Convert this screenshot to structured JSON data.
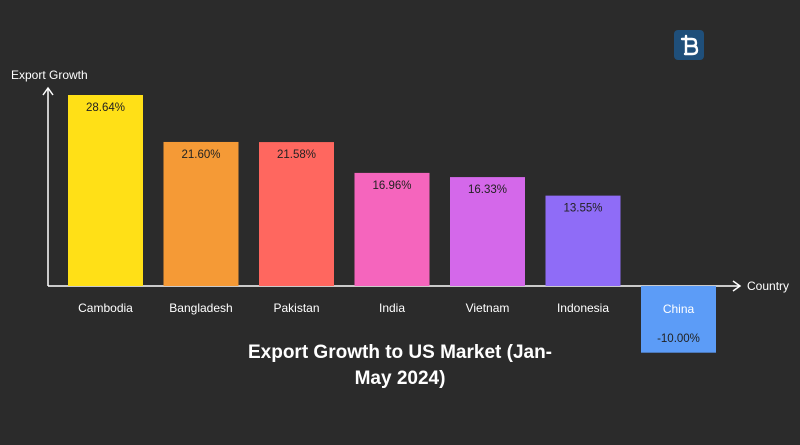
{
  "colors": {
    "background": "#2b2b2b",
    "axis": "#ffffff",
    "logo_bg": "#1f4f7a"
  },
  "logo": {
    "icon": "brand-b-logo-icon"
  },
  "chart_data": {
    "type": "bar",
    "title": "Export Growth to US Market (Jan-May 2024)",
    "xlabel": "Country",
    "ylabel": "Export Growth",
    "categories": [
      "Cambodia",
      "Bangladesh",
      "Pakistan",
      "India",
      "Vietnam",
      "Indonesia",
      "China"
    ],
    "values": [
      28.64,
      21.6,
      21.58,
      16.96,
      16.33,
      13.55,
      -10.0
    ],
    "value_labels": [
      "28.64%",
      "21.60%",
      "21.58%",
      "16.96%",
      "16.33%",
      "13.55%",
      "-10.00%"
    ],
    "bar_colors": [
      "#ffe017",
      "#f59a36",
      "#ff675f",
      "#f565bd",
      "#d468ea",
      "#8f6cf7",
      "#5c9cf7"
    ],
    "grid": false,
    "legend": "none",
    "ylim": [
      -10,
      30
    ]
  }
}
